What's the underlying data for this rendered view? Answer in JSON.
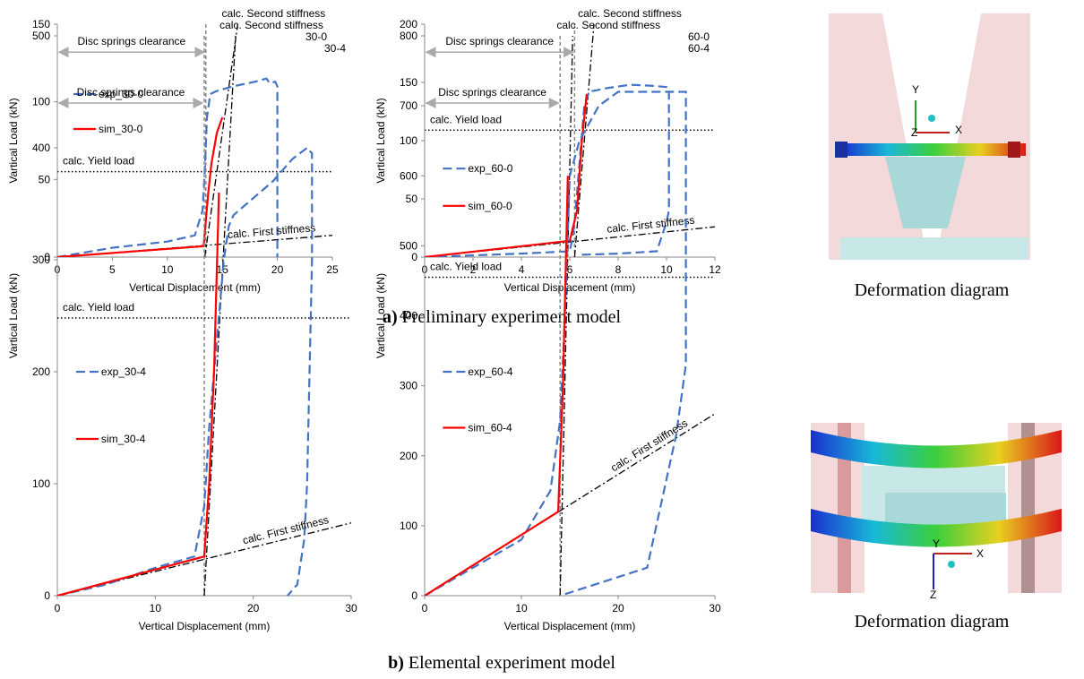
{
  "chart_data": [
    {
      "type": "line",
      "panel_label": "30-0",
      "x_label": "Vertical Displacement (mm)",
      "y_label": "Vartical Load (kN)",
      "xlim": [
        0,
        25
      ],
      "xticks": [
        0,
        5,
        10,
        15,
        20,
        25
      ],
      "ylim": [
        0,
        150
      ],
      "yticks": [
        0,
        50,
        100,
        150
      ],
      "series": [
        {
          "name": "exp_30-0",
          "color": "#4472c4",
          "line_style": "dashed",
          "x": [
            0,
            5,
            10,
            12.5,
            13.2,
            13.4,
            13.6,
            13.9,
            14.5,
            16,
            18,
            19,
            19.3,
            19.8,
            20,
            20
          ],
          "values": [
            0,
            6,
            10,
            14,
            30,
            55,
            90,
            105,
            107,
            110,
            113,
            115,
            112,
            113,
            110,
            0
          ]
        },
        {
          "name": "sim_30-0",
          "color": "#ff0000",
          "line_style": "solid",
          "x": [
            0,
            13.3,
            13.7,
            14,
            14.5,
            15
          ],
          "values": [
            0,
            7,
            40,
            60,
            80,
            90
          ]
        }
      ],
      "second_stiffness": {
        "label": "calc. Second stiffness",
        "x": [
          13.4,
          16.4
        ],
        "y": [
          0,
          150
        ]
      },
      "first_stiffness": {
        "label": "calc. First stiffness",
        "x": [
          0,
          25
        ],
        "y": [
          0,
          14
        ]
      },
      "yield_load": {
        "label": "calc. Yield load",
        "y": 55
      },
      "clearance": {
        "label": "Disc springs clearance",
        "x": 13.5
      }
    },
    {
      "type": "line",
      "panel_label": "60-0",
      "x_label": "Vertical Displacement (mm)",
      "y_label": "Vartical Load (kN)",
      "xlim": [
        0,
        12
      ],
      "xticks": [
        0,
        2,
        4,
        6,
        8,
        10,
        12
      ],
      "ylim": [
        0,
        200
      ],
      "yticks": [
        0,
        50,
        100,
        150,
        200
      ],
      "series": [
        {
          "name": "exp_60-0",
          "color": "#4472c4",
          "line_style": "dashed",
          "x": [
            0,
            2,
            4,
            6,
            6.1,
            6.2,
            6.4,
            6.6,
            6.8,
            7.5,
            8.5,
            9.5,
            10,
            10.1,
            10.1,
            10,
            9.6,
            8,
            6.5
          ],
          "values": [
            0,
            1.5,
            3,
            5,
            15,
            30,
            80,
            130,
            142,
            145,
            148,
            147,
            146,
            145,
            40,
            30,
            5,
            3,
            2
          ]
        },
        {
          "name": "sim_60-0",
          "color": "#ff0000",
          "line_style": "solid",
          "x": [
            0,
            6,
            6.3,
            6.5,
            6.7
          ],
          "values": [
            0,
            14,
            40,
            100,
            140
          ]
        }
      ],
      "second_stiffness": {
        "label": "calc. Second stiffness",
        "x": [
          6.2,
          7
        ],
        "y": [
          0,
          200
        ]
      },
      "first_stiffness": {
        "label": "calc. First stiffness",
        "x": [
          0,
          12
        ],
        "y": [
          0,
          26
        ]
      },
      "yield_load": {
        "label": "calc. Yield load",
        "y": 109
      },
      "clearance": {
        "label": "Disc springs clearance",
        "x": 6.2
      }
    },
    {
      "type": "line",
      "panel_label": "30-4",
      "x_label": "Vertical Displacement (mm)",
      "y_label": "Vartical Load (kN)",
      "xlim": [
        0,
        30
      ],
      "xticks": [
        0,
        10,
        20,
        30
      ],
      "ylim": [
        0,
        500
      ],
      "yticks": [
        0,
        100,
        200,
        300,
        400,
        500
      ],
      "series": [
        {
          "name": "exp_30-4",
          "color": "#4472c4",
          "line_style": "dashed",
          "x": [
            0,
            5,
            10,
            14,
            15,
            15.5,
            16,
            16.5,
            17,
            17.5,
            18,
            20,
            22,
            24,
            25.5,
            26,
            26,
            25.5,
            25.2,
            24.5,
            23.5
          ],
          "values": [
            0,
            10,
            25,
            35,
            80,
            150,
            200,
            250,
            300,
            330,
            340,
            355,
            370,
            390,
            400,
            395,
            300,
            100,
            50,
            10,
            0
          ]
        },
        {
          "name": "sim_30-4",
          "color": "#ff0000",
          "line_style": "solid",
          "x": [
            0,
            15,
            15.5,
            16,
            16.5
          ],
          "values": [
            0,
            35,
            100,
            200,
            360
          ]
        }
      ],
      "second_stiffness": {
        "label": "calc. Second stiffness",
        "x": [
          15,
          18.2
        ],
        "y": [
          0,
          500
        ]
      },
      "first_stiffness": {
        "label": "calc. First stiffness",
        "x": [
          0,
          30
        ],
        "y": [
          0,
          65
        ]
      },
      "yield_load": {
        "label": "calc. Yield load",
        "y": 248
      },
      "clearance": {
        "label": "Disc springs clearance",
        "x": 15
      }
    },
    {
      "type": "line",
      "panel_label": "60-4",
      "x_label": "Vertical Displacement (mm)",
      "y_label": "Vartical Load (kN)",
      "xlim": [
        0,
        30
      ],
      "xticks": [
        0,
        10,
        20,
        30
      ],
      "ylim": [
        0,
        800
      ],
      "yticks": [
        0,
        100,
        200,
        300,
        400,
        500,
        600,
        700,
        800
      ],
      "series": [
        {
          "name": "exp_60-4",
          "color": "#4472c4",
          "line_style": "dashed",
          "x": [
            0,
            5,
            10,
            13,
            14,
            14.5,
            15,
            16,
            18,
            20,
            24,
            27,
            27,
            26,
            23,
            14
          ],
          "values": [
            0,
            40,
            80,
            150,
            250,
            400,
            600,
            650,
            700,
            720,
            720,
            720,
            330,
            230,
            40,
            0
          ]
        },
        {
          "name": "sim_60-4",
          "color": "#ff0000",
          "line_style": "solid",
          "x": [
            0,
            13.8,
            14.3,
            14.8
          ],
          "values": [
            0,
            120,
            300,
            600
          ]
        }
      ],
      "second_stiffness": {
        "label": "calc. Second stiffness",
        "x": [
          14,
          15.3
        ],
        "y": [
          0,
          800
        ]
      },
      "first_stiffness": {
        "label": "calc. First stiffness",
        "x": [
          0,
          30
        ],
        "y": [
          0,
          260
        ]
      },
      "yield_load": {
        "label": "calc. Yield load",
        "y": 455
      },
      "clearance": {
        "label": "Disc springs clearance",
        "x": 14
      }
    }
  ],
  "captions": [
    {
      "label": "a)",
      "text": "Preliminary experiment model"
    },
    {
      "label": "b)",
      "text": "Elemental experiment model"
    }
  ],
  "diagrams": [
    {
      "caption": "Deformation diagram",
      "axes": [
        "X",
        "Y",
        "Z"
      ]
    },
    {
      "caption": "Deformation diagram",
      "axes": [
        "X",
        "Y",
        "Z"
      ]
    }
  ]
}
